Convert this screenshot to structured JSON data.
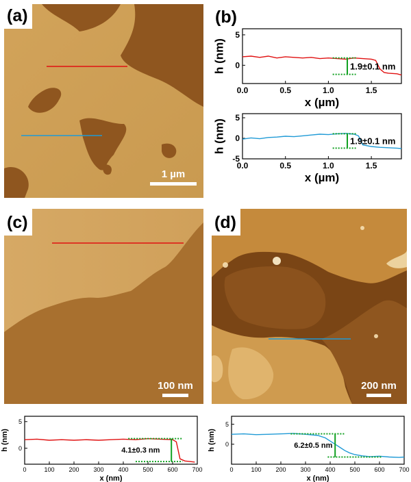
{
  "panels": {
    "a": {
      "label": "(a)",
      "scale_bar": "1 µm"
    },
    "b": {
      "label": "(b)"
    },
    "c": {
      "label": "(c)",
      "scale_bar": "100 nm"
    },
    "d": {
      "label": "(d)",
      "scale_bar": "200 nm"
    }
  },
  "colors": {
    "red_profile": "#e01010",
    "blue_profile": "#1f9ad6",
    "green_marker": "#10a020",
    "afm_light": "#d8a75a",
    "afm_dark": "#8c531c"
  },
  "chart_data": [
    {
      "id": "b-top",
      "type": "line",
      "xlabel": "x (µm)",
      "ylabel": "h (nm)",
      "xlim": [
        0,
        1.85
      ],
      "ylim": [
        -3,
        6
      ],
      "xticks": [
        "0.0",
        "0.5",
        "1.0",
        "1.5"
      ],
      "yticks": [
        "0",
        "5"
      ],
      "annotation": "1.9±0.1 nm",
      "series": [
        {
          "color": "#e01010",
          "x": [
            0,
            0.1,
            0.2,
            0.3,
            0.4,
            0.5,
            0.6,
            0.7,
            0.8,
            0.9,
            1.0,
            1.1,
            1.2,
            1.3,
            1.4,
            1.5,
            1.55,
            1.6,
            1.65,
            1.7,
            1.8,
            1.85
          ],
          "y": [
            1.4,
            1.5,
            1.3,
            1.5,
            1.2,
            1.4,
            1.3,
            1.2,
            1.3,
            1.1,
            1.2,
            1.1,
            1.0,
            1.2,
            1.1,
            1.0,
            0.8,
            -0.6,
            -1.2,
            -1.3,
            -1.4,
            -1.6
          ]
        }
      ]
    },
    {
      "id": "b-bottom",
      "type": "line",
      "xlabel": "x (µm)",
      "ylabel": "h (nm)",
      "xlim": [
        0,
        1.85
      ],
      "ylim": [
        -5,
        6
      ],
      "xticks": [
        "0.0",
        "0.5",
        "1.0",
        "1.5"
      ],
      "yticks": [
        "-5",
        "0",
        "5"
      ],
      "annotation": "1.9±0.1 nm",
      "series": [
        {
          "color": "#1f9ad6",
          "x": [
            0,
            0.1,
            0.2,
            0.3,
            0.4,
            0.5,
            0.6,
            0.7,
            0.8,
            0.9,
            1.0,
            1.1,
            1.2,
            1.3,
            1.35,
            1.4,
            1.5,
            1.6,
            1.7,
            1.8,
            1.85
          ],
          "y": [
            -0.2,
            0.1,
            -0.1,
            0.2,
            0.3,
            0.5,
            0.4,
            0.6,
            0.8,
            1.0,
            0.9,
            1.1,
            1.2,
            1.0,
            0.6,
            -1.6,
            -2.0,
            -2.2,
            -2.3,
            -2.4,
            -2.5
          ]
        }
      ]
    },
    {
      "id": "c-profile",
      "type": "line",
      "xlabel": "x (nm)",
      "ylabel": "h (nm)",
      "xlim": [
        0,
        700
      ],
      "ylim": [
        -3,
        6
      ],
      "xticks": [
        "0",
        "100",
        "200",
        "300",
        "400",
        "500",
        "600",
        "700"
      ],
      "yticks": [
        "0",
        "5"
      ],
      "annotation": "4.1±0.3 nm",
      "series": [
        {
          "color": "#e01010",
          "x": [
            0,
            50,
            100,
            150,
            200,
            250,
            300,
            350,
            400,
            450,
            500,
            550,
            600,
            615,
            630,
            650,
            670,
            690
          ],
          "y": [
            1.6,
            1.7,
            1.5,
            1.6,
            1.5,
            1.6,
            1.5,
            1.6,
            1.7,
            1.6,
            1.8,
            1.7,
            1.6,
            1.2,
            -2.0,
            -2.4,
            -2.5,
            -2.6
          ]
        }
      ]
    },
    {
      "id": "d-profile",
      "type": "line",
      "xlabel": "x (nm)",
      "ylabel": "h (nm)",
      "xlim": [
        0,
        700
      ],
      "ylim": [
        -5,
        7
      ],
      "xticks": [
        "0",
        "100",
        "200",
        "300",
        "400",
        "500",
        "600",
        "700"
      ],
      "yticks": [
        "0",
        "5"
      ],
      "annotation": "6.2±0.5 nm",
      "series": [
        {
          "color": "#1f9ad6",
          "x": [
            0,
            50,
            100,
            150,
            200,
            250,
            300,
            350,
            380,
            400,
            420,
            440,
            460,
            480,
            500,
            530,
            560,
            600,
            640,
            680,
            700
          ],
          "y": [
            2.5,
            2.6,
            2.4,
            2.5,
            2.6,
            2.7,
            2.5,
            2.2,
            1.6,
            0.8,
            0.0,
            -0.8,
            -1.6,
            -2.2,
            -2.6,
            -2.9,
            -3.1,
            -3.0,
            -3.2,
            -3.3,
            -3.2
          ]
        }
      ]
    }
  ]
}
